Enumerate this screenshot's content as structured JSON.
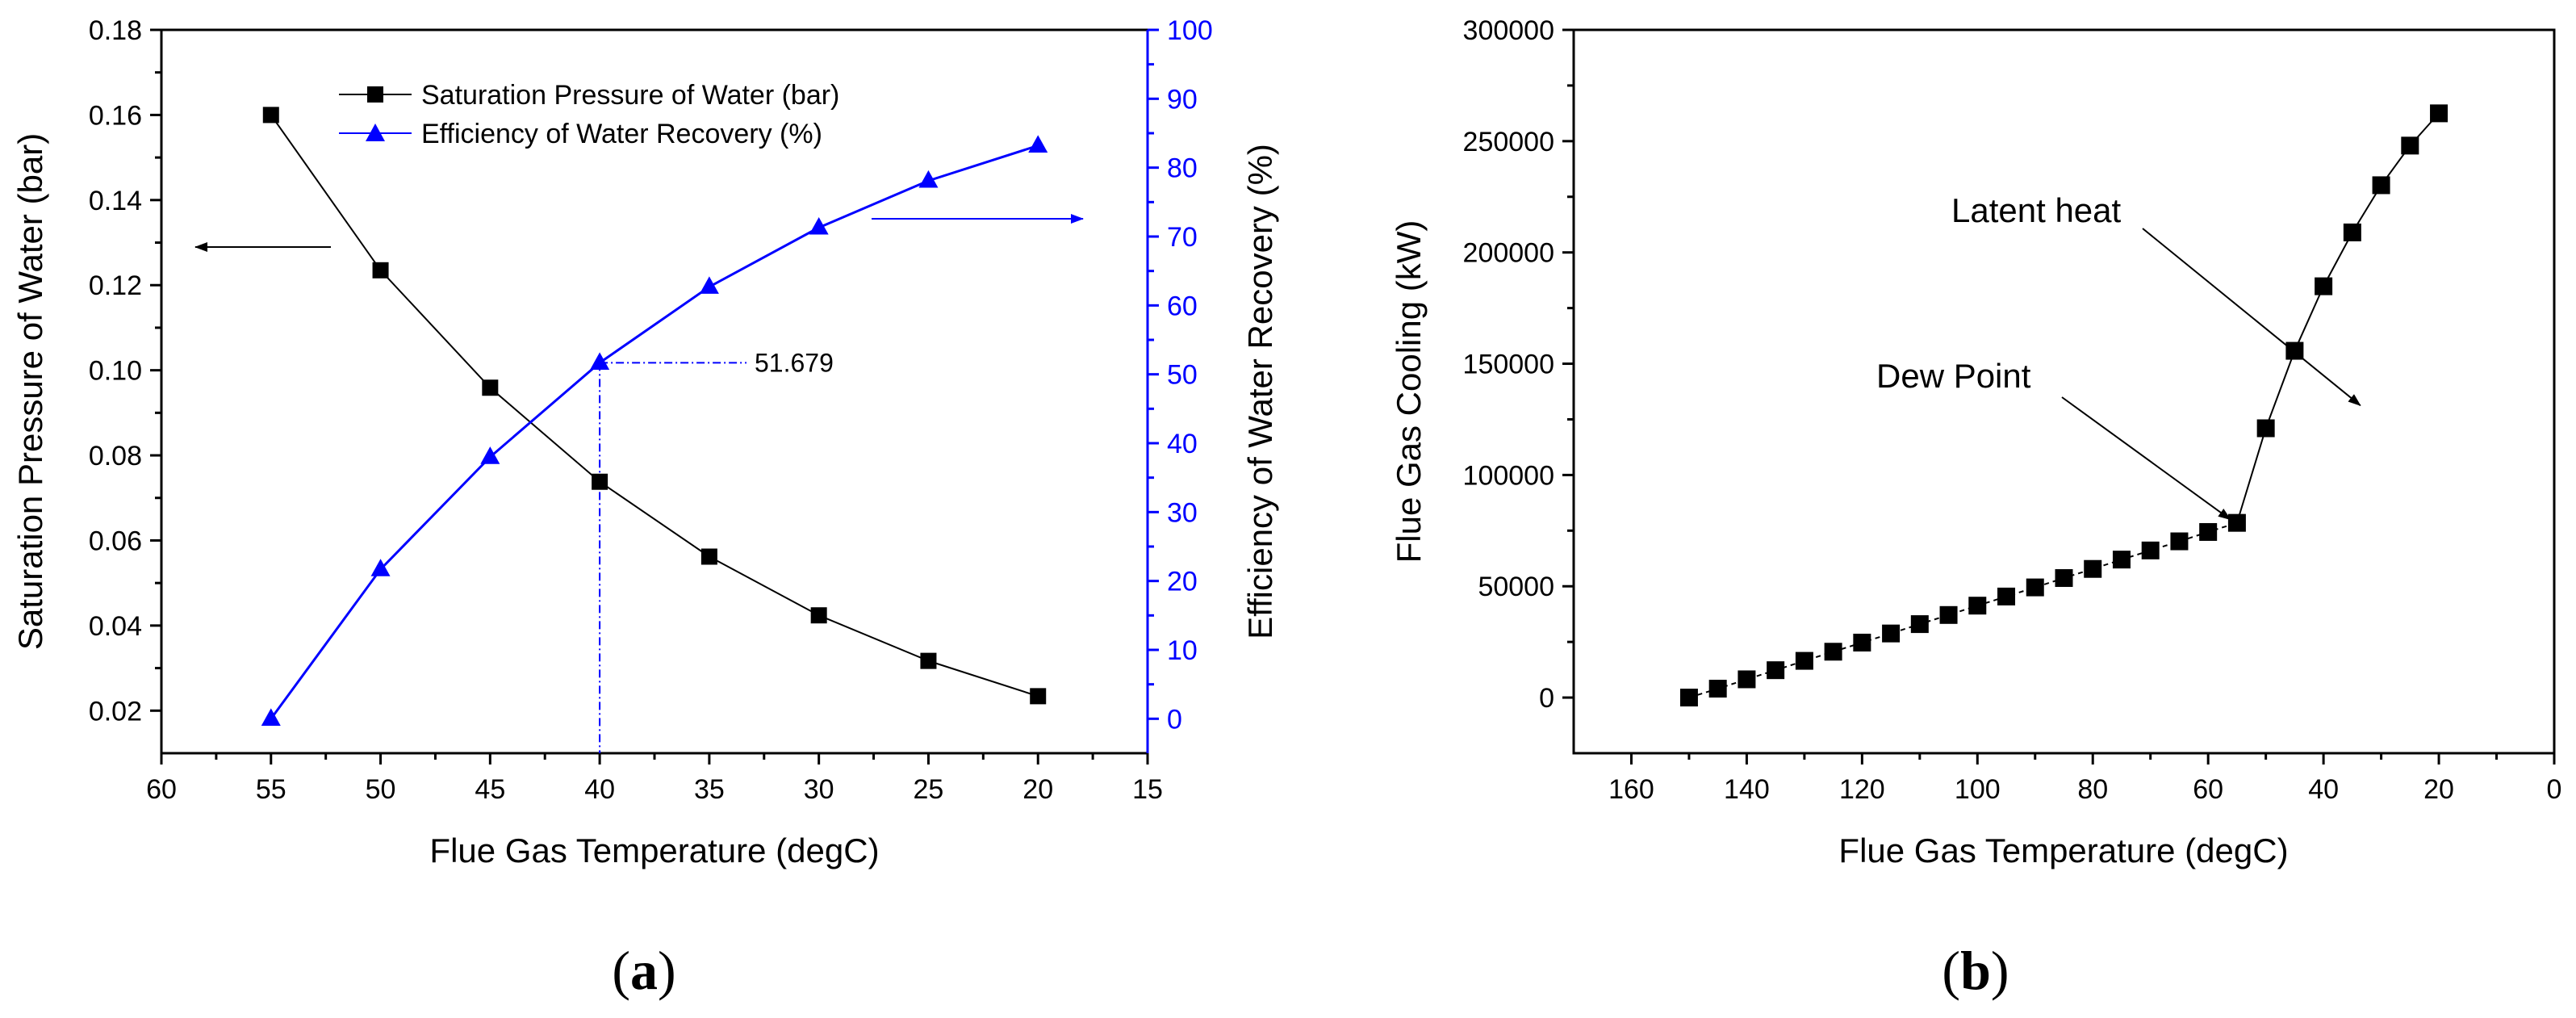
{
  "colors": {
    "series_black": "#000000",
    "series_blue": "#0000ff"
  },
  "chart_data": [
    {
      "panel": "(a)",
      "panel_letter": "a",
      "type": "line",
      "xlabel": "Flue Gas Temperature (degC)",
      "xlim": [
        60,
        15
      ],
      "xticks": [
        "60",
        "55",
        "50",
        "45",
        "40",
        "35",
        "30",
        "25",
        "20",
        "15"
      ],
      "ylabel_left": "Saturation Pressure of Water (bar)",
      "ylim_left": [
        0.01,
        0.18
      ],
      "yticks_left": [
        "0.02",
        "0.04",
        "0.06",
        "0.08",
        "0.10",
        "0.12",
        "0.14",
        "0.16",
        "0.18"
      ],
      "ylabel_right": "Efficiency of Water Recovery (%)",
      "ylim_right": [
        -5,
        100
      ],
      "yticks_right": [
        "0",
        "10",
        "20",
        "30",
        "40",
        "50",
        "60",
        "70",
        "80",
        "90",
        "100"
      ],
      "legend": [
        "Saturation Pressure of Water (bar)",
        "Efficiency of Water Recovery (%)"
      ],
      "series": [
        {
          "name": "Saturation Pressure of Water (bar)",
          "axis": "left",
          "marker": "square",
          "color": "#000000",
          "x": [
            55,
            50,
            45,
            40,
            35,
            30,
            25,
            20
          ],
          "y": [
            0.16,
            0.1235,
            0.0959,
            0.0738,
            0.0562,
            0.0424,
            0.0317,
            0.0234
          ]
        },
        {
          "name": "Efficiency of Water Recovery (%)",
          "axis": "right",
          "marker": "triangle",
          "color": "#0000ff",
          "x": [
            55,
            50,
            45,
            40,
            35,
            30,
            25,
            20
          ],
          "y": [
            0,
            21.7,
            38.0,
            51.679,
            62.7,
            71.3,
            78.1,
            83.2
          ]
        }
      ],
      "annotation_value": "51.679",
      "annotation_point": {
        "x": 40,
        "y": 51.679
      }
    },
    {
      "panel": "(b)",
      "panel_letter": "b",
      "type": "scatter",
      "xlabel": "Flue Gas Temperature (degC)",
      "xlim": [
        170,
        0
      ],
      "xticks": [
        "160",
        "140",
        "120",
        "100",
        "80",
        "60",
        "40",
        "20",
        "0"
      ],
      "ylabel": "Flue Gas Cooling (kW)",
      "ylim": [
        -25000,
        300000
      ],
      "yticks": [
        "0",
        "50000",
        "100000",
        "150000",
        "200000",
        "250000",
        "300000"
      ],
      "series": [
        {
          "name": "Flue Gas Cooling",
          "marker": "square",
          "color": "#000000",
          "x": [
            150,
            145,
            140,
            135,
            130,
            125,
            120,
            115,
            110,
            105,
            100,
            95,
            90,
            85,
            80,
            75,
            70,
            65,
            60,
            55,
            50,
            45,
            40,
            35,
            30,
            25,
            20
          ],
          "y": [
            0,
            4000,
            8200,
            12300,
            16500,
            20600,
            24700,
            28800,
            33000,
            37100,
            41300,
            45400,
            49500,
            53700,
            57800,
            62000,
            66100,
            70200,
            74400,
            78500,
            121000,
            155800,
            184800,
            209000,
            230200,
            248000,
            262500
          ]
        }
      ],
      "annotations": [
        {
          "text": "Latent heat",
          "point": {
            "x": 42,
            "y": 153000
          }
        },
        {
          "text": "Dew Point",
          "point": {
            "x": 55,
            "y": 78500
          }
        }
      ]
    }
  ]
}
